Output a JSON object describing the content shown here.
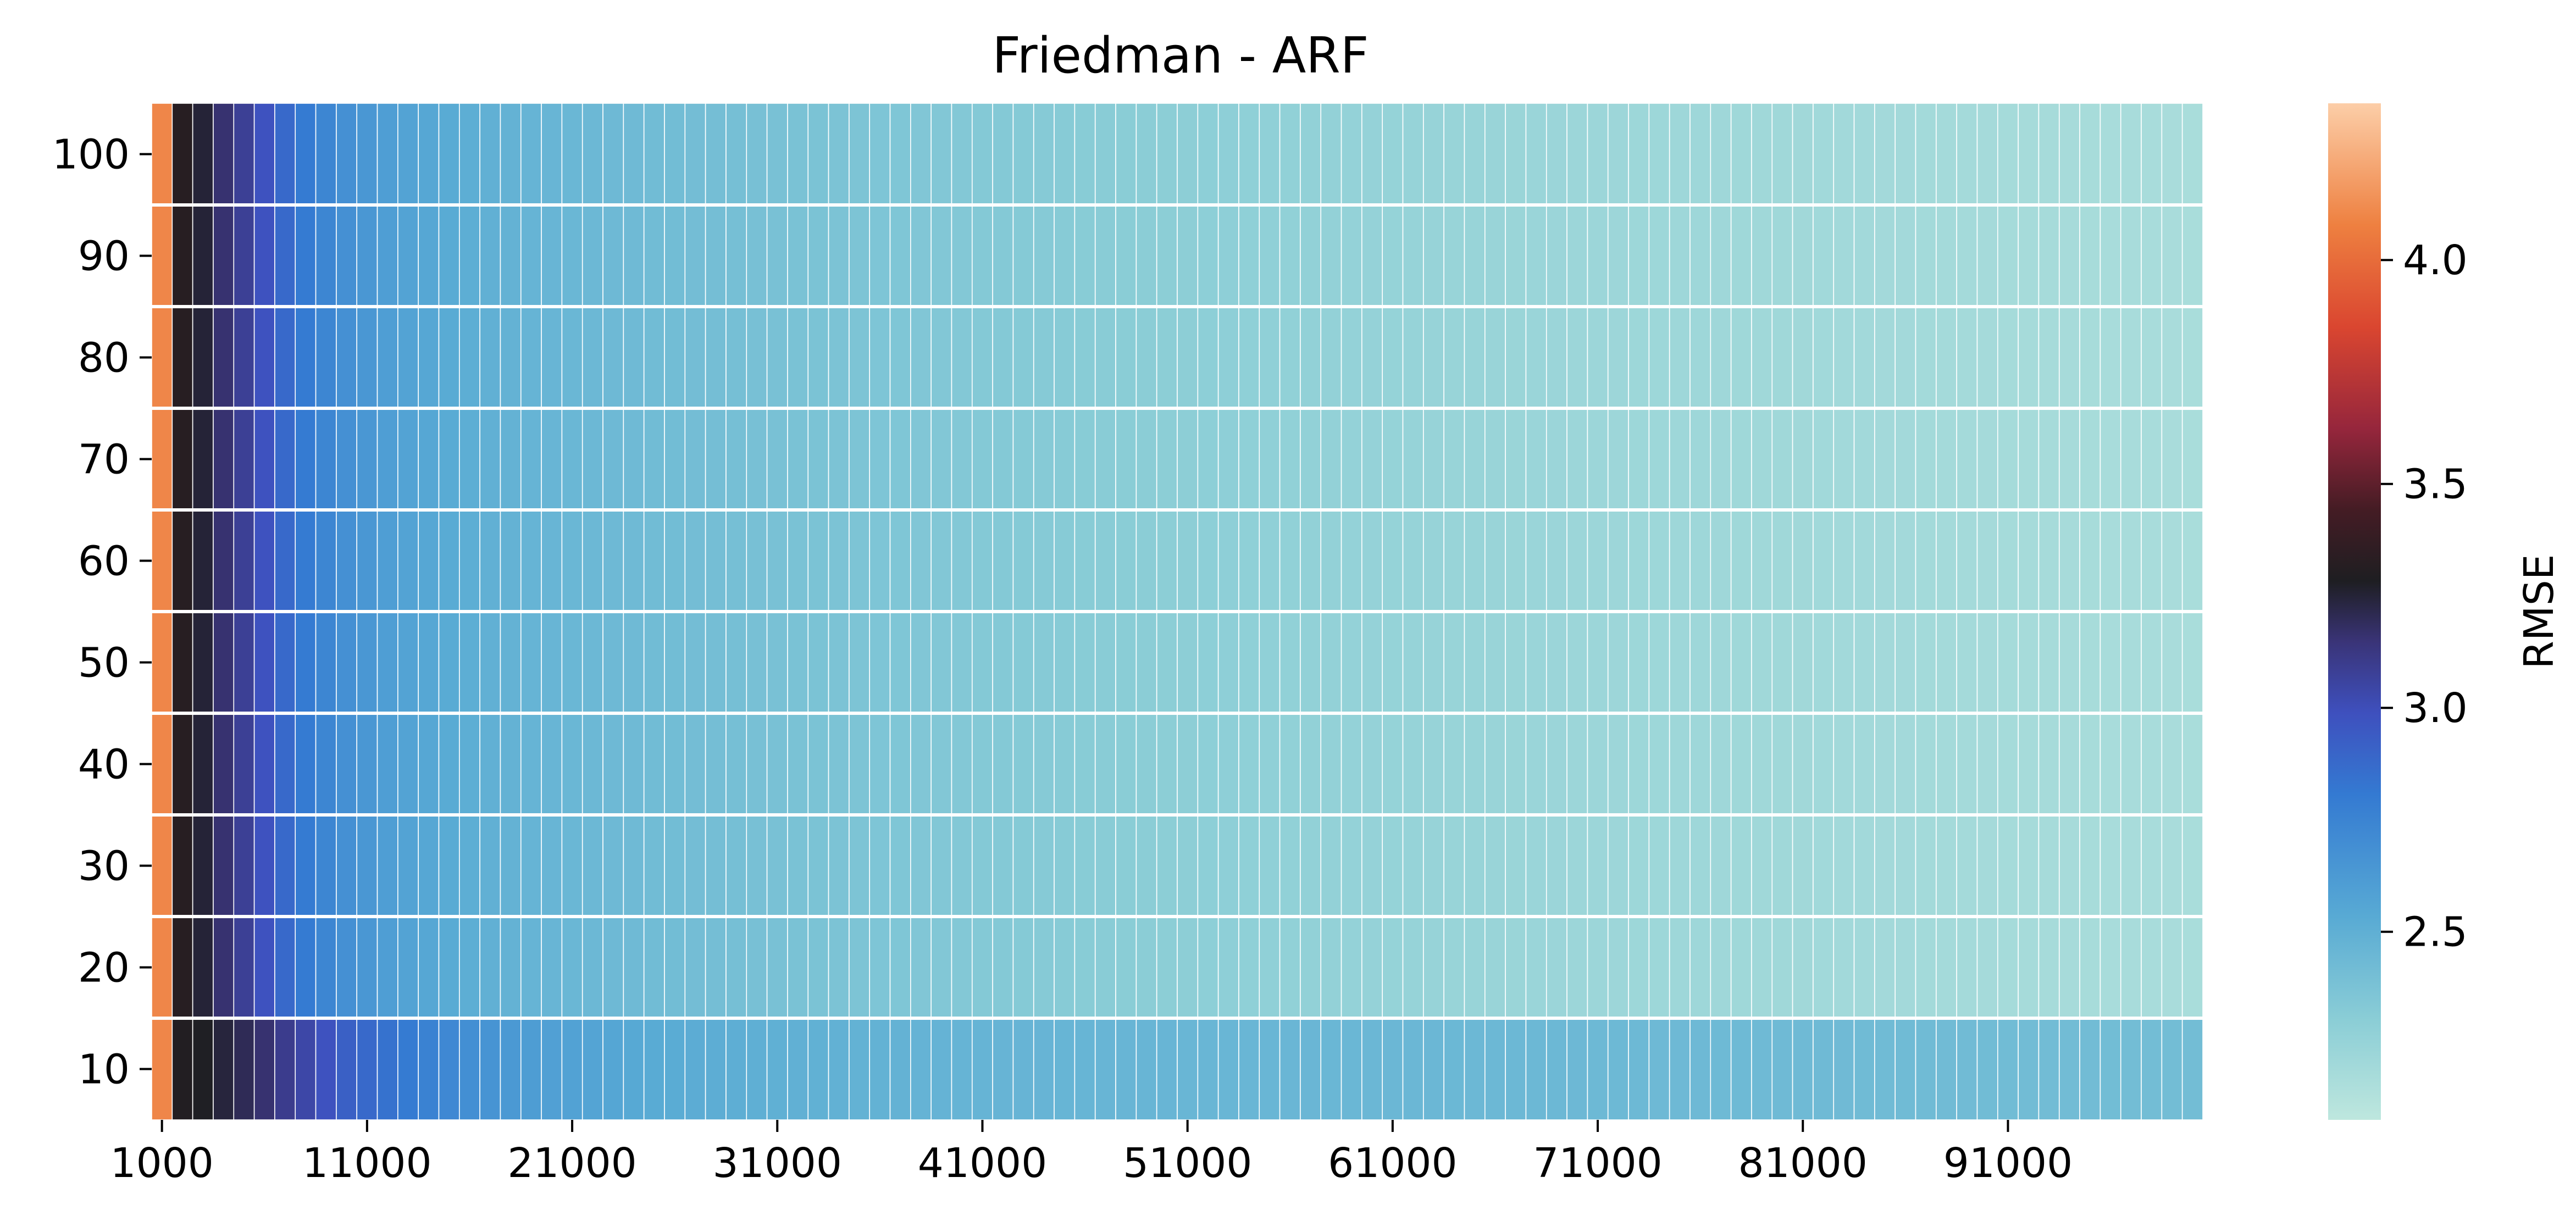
{
  "chart_data": {
    "type": "heatmap",
    "title": "Friedman - ARF",
    "xlabel": "",
    "ylabel": "",
    "x_ticks": [
      "1000",
      "11000",
      "21000",
      "31000",
      "41000",
      "51000",
      "61000",
      "71000",
      "81000",
      "91000"
    ],
    "y_categories": [
      "100",
      "90",
      "80",
      "70",
      "60",
      "50",
      "40",
      "30",
      "20",
      "10"
    ],
    "x_start": 1000,
    "x_step": 1000,
    "x_count": 100,
    "colorbar": {
      "label": "RMSE",
      "min": 2.08,
      "max": 4.35,
      "ticks": [
        "2.5",
        "3.0",
        "3.5",
        "4.0"
      ],
      "colormap": "icefire"
    },
    "curve": {
      "description": "RMSE per column sampled at x positions, rows 20-100 share the curve, row 10 is slower to converge",
      "columns_sampled": [
        1000,
        2000,
        3000,
        4000,
        5000,
        6000,
        7000,
        8000,
        9000,
        10000,
        12000,
        14000,
        16000,
        18000,
        20000,
        25000,
        30000,
        40000,
        50000,
        60000,
        70000,
        80000,
        90000,
        100000
      ],
      "rows_20_100": [
        4.1,
        3.32,
        3.25,
        3.16,
        3.08,
        2.98,
        2.88,
        2.8,
        2.74,
        2.68,
        2.6,
        2.55,
        2.51,
        2.48,
        2.46,
        2.42,
        2.39,
        2.34,
        2.3,
        2.26,
        2.23,
        2.21,
        2.19,
        2.17
      ],
      "row_10": [
        4.1,
        3.3,
        3.28,
        3.24,
        3.2,
        3.16,
        3.1,
        3.04,
        2.98,
        2.92,
        2.84,
        2.76,
        2.69,
        2.63,
        2.59,
        2.53,
        2.5,
        2.47,
        2.46,
        2.45,
        2.44,
        2.43,
        2.42,
        2.41
      ]
    }
  }
}
